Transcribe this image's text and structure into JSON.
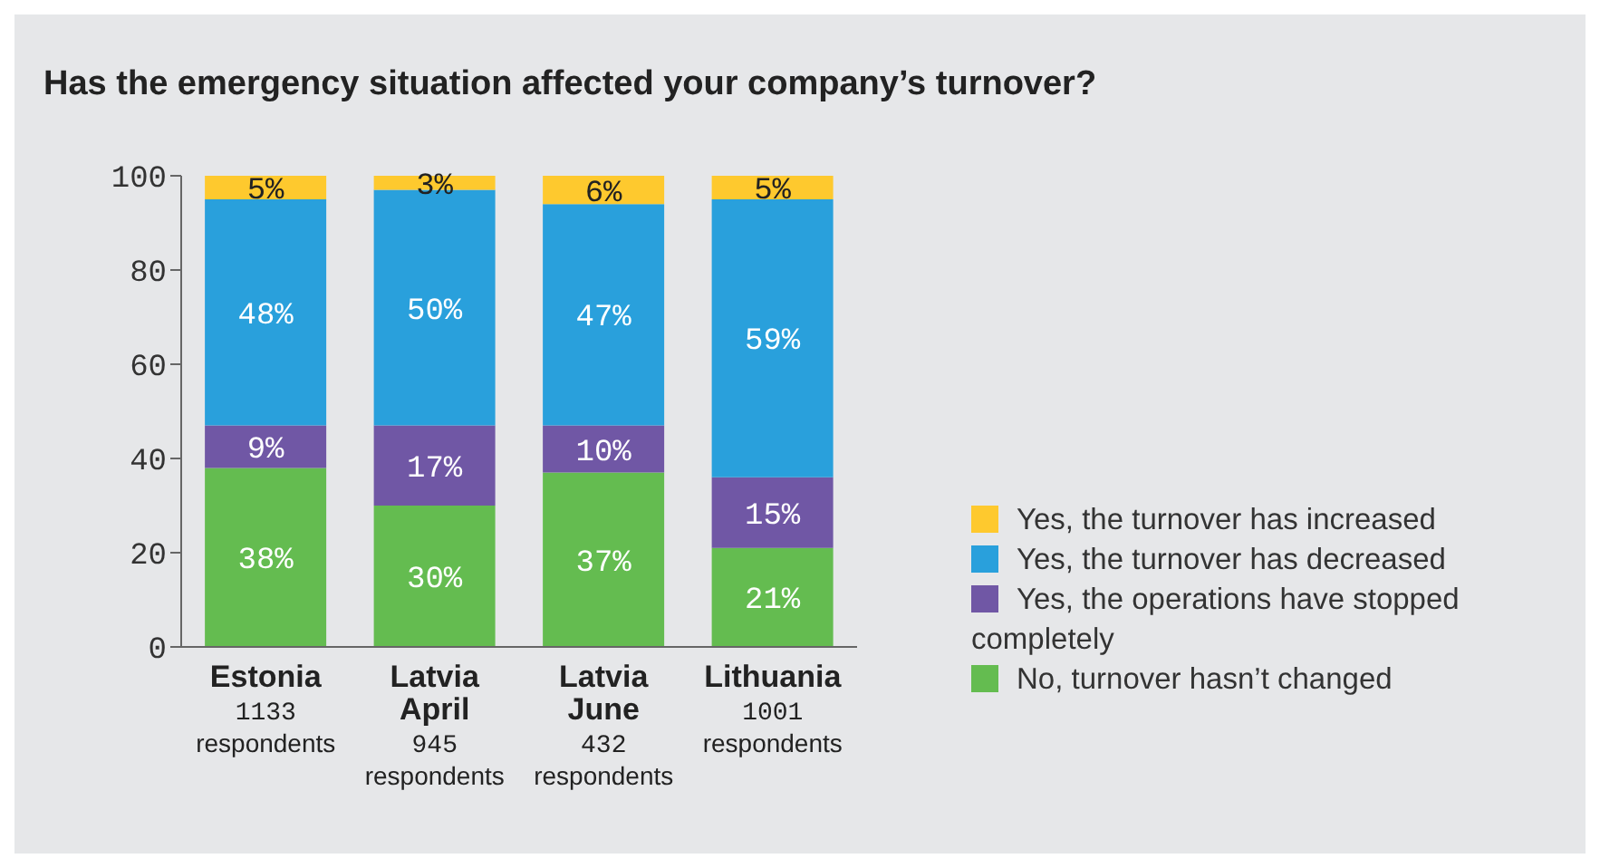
{
  "chart_data": {
    "type": "bar",
    "title": "Has the emergency situation affected your company’s turnover?",
    "categories": [
      "Estonia\n1133\nrespondents",
      "Latvia\nApril\n945\nrespondents",
      "Latvia\nJune\n432\nrespondents",
      "Lithuania\n1001\nrespondents"
    ],
    "stacked": true,
    "ylim": [
      0,
      100
    ],
    "yticks": [
      0,
      20,
      40,
      60,
      80,
      100
    ],
    "legend": "right",
    "series": [
      {
        "name": "No, turnover hasn’t changed",
        "color": "#64bc50",
        "values": [
          38,
          30,
          37,
          21
        ],
        "value_labels": [
          "38%",
          "30%",
          "37%",
          "21%"
        ]
      },
      {
        "name": "Yes, the operations have stopped completely",
        "color": "#7057a5",
        "values": [
          9,
          17,
          10,
          15
        ],
        "value_labels": [
          "9%",
          "17%",
          "10%",
          "15%"
        ]
      },
      {
        "name": "Yes, the turnover has decreased",
        "color": "#29a0dc",
        "values": [
          48,
          50,
          47,
          59
        ],
        "value_labels": [
          "48%",
          "50%",
          "47%",
          "59%"
        ]
      },
      {
        "name": "Yes, the turnover has increased",
        "color": "#fec92e",
        "values": [
          5,
          3,
          6,
          5
        ],
        "value_labels": [
          "5%",
          "3%",
          "6%",
          "5%"
        ]
      }
    ]
  }
}
